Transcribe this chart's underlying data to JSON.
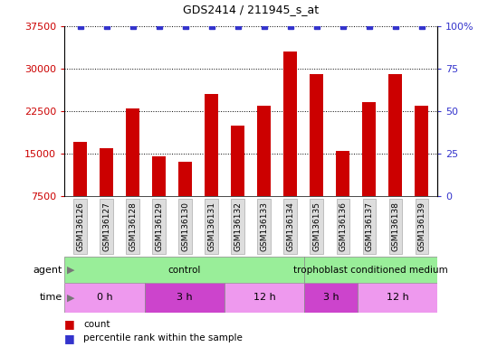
{
  "title": "GDS2414 / 211945_s_at",
  "samples": [
    "GSM136126",
    "GSM136127",
    "GSM136128",
    "GSM136129",
    "GSM136130",
    "GSM136131",
    "GSM136132",
    "GSM136133",
    "GSM136134",
    "GSM136135",
    "GSM136136",
    "GSM136137",
    "GSM136138",
    "GSM136139"
  ],
  "counts": [
    17000,
    16000,
    23000,
    14500,
    13500,
    25500,
    20000,
    23500,
    33000,
    29000,
    15500,
    24000,
    29000,
    23500
  ],
  "percentile_ranks": [
    100,
    100,
    100,
    100,
    100,
    100,
    100,
    100,
    100,
    100,
    100,
    100,
    100,
    100
  ],
  "ylim_left": [
    7500,
    37500
  ],
  "ylim_right": [
    0,
    100
  ],
  "yticks_left": [
    7500,
    15000,
    22500,
    30000,
    37500
  ],
  "yticks_right": [
    0,
    25,
    50,
    75,
    100
  ],
  "bar_color": "#cc0000",
  "dot_color": "#3333cc",
  "agent_color": "#99ee99",
  "time_colors": [
    "#ee99ee",
    "#cc44cc",
    "#ee99ee",
    "#cc44cc",
    "#ee99ee"
  ],
  "agent_groups": [
    {
      "label": "control",
      "start": 0,
      "end": 9
    },
    {
      "label": "trophoblast conditioned medium",
      "start": 9,
      "end": 14
    }
  ],
  "time_groups": [
    {
      "label": "0 h",
      "start": 0,
      "end": 3
    },
    {
      "label": "3 h",
      "start": 3,
      "end": 6
    },
    {
      "label": "12 h",
      "start": 6,
      "end": 9
    },
    {
      "label": "3 h",
      "start": 9,
      "end": 11
    },
    {
      "label": "12 h",
      "start": 11,
      "end": 14
    }
  ],
  "agent_label": "agent",
  "time_label": "time",
  "legend_count_label": "count",
  "legend_percentile_label": "percentile rank within the sample",
  "background_color": "#ffffff",
  "tick_label_color_left": "#cc0000",
  "tick_label_color_right": "#3333cc",
  "xtick_bg_color": "#dddddd",
  "xtick_edge_color": "#aaaaaa",
  "arrow_color": "#777777"
}
